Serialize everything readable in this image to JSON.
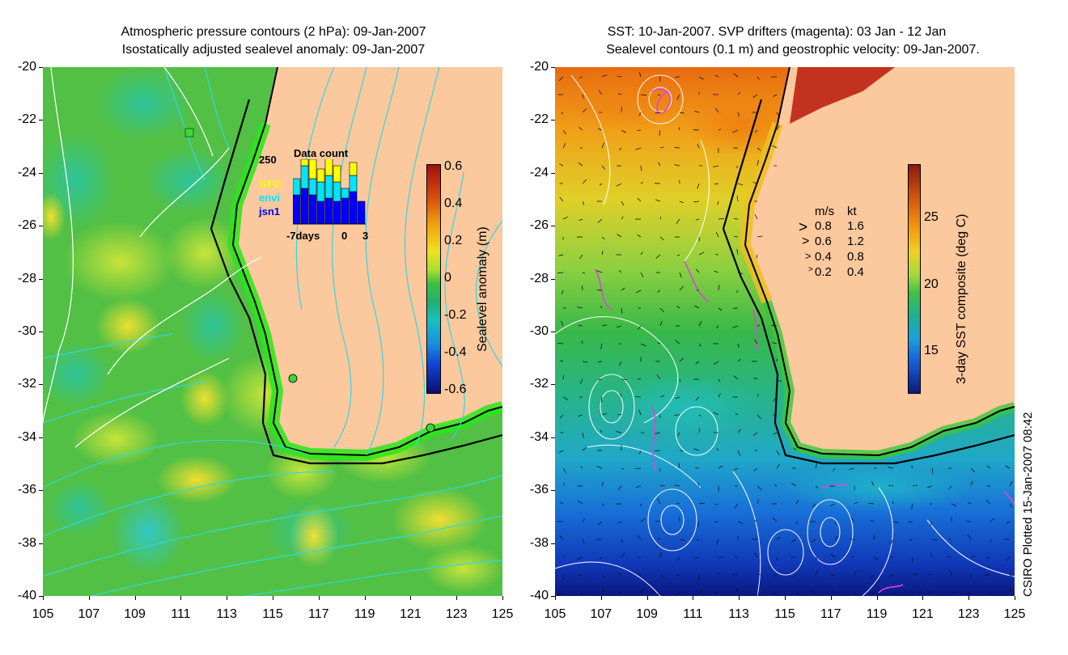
{
  "left_map": {
    "title_line1": "Atmospheric pressure contours (2 hPa): 09-Jan-2007",
    "title_line2": "Isostatically adjusted sealevel anomaly: 09-Jan-2007",
    "lat_ticks": [
      "-20",
      "-22",
      "-24",
      "-26",
      "-28",
      "-30",
      "-32",
      "-34",
      "-36",
      "-38",
      "-40"
    ],
    "lon_ticks": [
      "105",
      "107",
      "109",
      "111",
      "113",
      "115",
      "117",
      "119",
      "121",
      "123",
      "125"
    ],
    "colorbar": {
      "title": "Sealevel anomaly (m)",
      "ticks": [
        "0.6",
        "0.4",
        "0.2",
        "0",
        "-0.2",
        "-0.4",
        "-0.6"
      ]
    },
    "data_count": {
      "title": "Data count",
      "max_label": "250",
      "series": [
        {
          "name": "GFO",
          "color": "#ffff00"
        },
        {
          "name": "envi",
          "color": "#00e5ff"
        },
        {
          "name": "jsn1",
          "color": "#0000ff"
        }
      ],
      "x_start": "-7days",
      "x_mid": "0",
      "x_end": "3",
      "bars": [
        {
          "jsn1": 0.45,
          "envi": 0.25,
          "gfo": 0.0
        },
        {
          "jsn1": 0.55,
          "envi": 0.35,
          "gfo": 0.1
        },
        {
          "jsn1": 0.45,
          "envi": 0.25,
          "gfo": 0.3
        },
        {
          "jsn1": 0.35,
          "envi": 0.3,
          "gfo": 0.2
        },
        {
          "jsn1": 0.4,
          "envi": 0.35,
          "gfo": 0.3
        },
        {
          "jsn1": 0.35,
          "envi": 0.3,
          "gfo": 0.25
        },
        {
          "jsn1": 0.4,
          "envi": 0.15,
          "gfo": 0.0
        },
        {
          "jsn1": 0.5,
          "envi": 0.25,
          "gfo": 0.2
        },
        {
          "jsn1": 0.35,
          "envi": 0.0,
          "gfo": 0.0
        }
      ]
    }
  },
  "right_map": {
    "title_line1": "SST: 10-Jan-2007. SVP drifters (magenta): 03 Jan - 12 Jan",
    "title_line2": "Sealevel contours (0.1 m) and geostrophic velocity: 09-Jan-2007.",
    "lat_ticks": [
      "-20",
      "-22",
      "-24",
      "-26",
      "-28",
      "-30",
      "-32",
      "-34",
      "-36",
      "-38",
      "-40"
    ],
    "lon_ticks": [
      "105",
      "107",
      "109",
      "111",
      "113",
      "115",
      "117",
      "119",
      "121",
      "123",
      "125"
    ],
    "colorbar": {
      "title": "3-day SST composite (deg C)",
      "ticks": [
        "25",
        "20",
        "15"
      ]
    },
    "velocity_legend": {
      "header_ms": "m/s",
      "header_kt": "kt",
      "rows": [
        {
          "ms": "0.8",
          "kt": "1.6"
        },
        {
          "ms": "0.6",
          "kt": "1.2"
        },
        {
          "ms": "0.4",
          "kt": "0.8"
        },
        {
          "ms": "0.2",
          "kt": "0.4"
        }
      ]
    }
  },
  "credit": "CSIRO Plotted 15-Jan-2007 08:42",
  "colors": {
    "land": "#fcc89e",
    "ocean_green": "#4cc24a",
    "contour_cyan": "#30d8e0",
    "drifter_magenta": "#e040e0"
  }
}
